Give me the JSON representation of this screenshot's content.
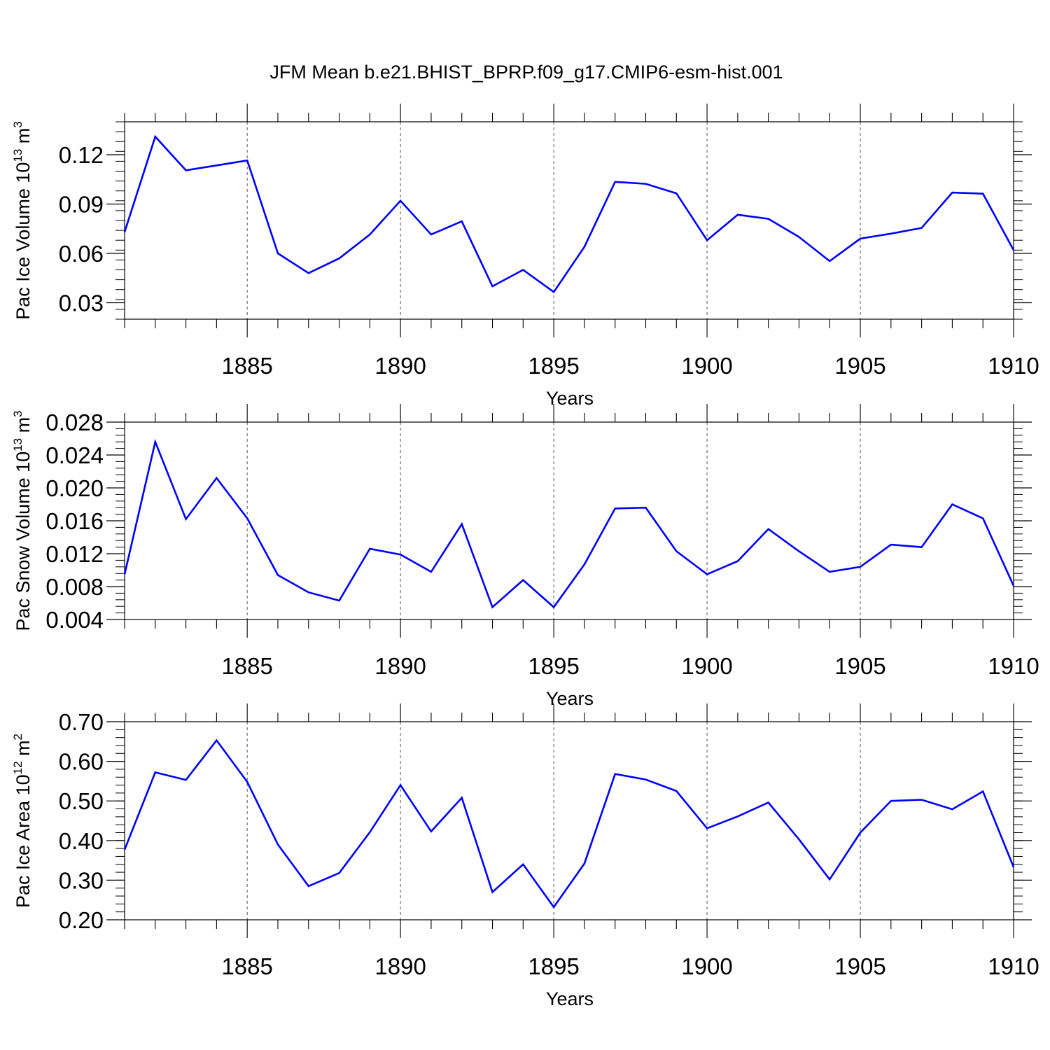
{
  "figure_title": "JFM Mean b.e21.BHIST_BPRP.f09_g17.CMIP6-esm-hist.001",
  "chart_data": [
    {
      "type": "line",
      "xlabel": "Years",
      "ylabel_parts": {
        "text": "Pac Ice Volume 10",
        "sup1": "13",
        "unit": " m",
        "sup2": "3"
      },
      "xlim": [
        1881,
        1910
      ],
      "ylim": [
        0.02,
        0.14
      ],
      "yticks": [
        0.03,
        0.06,
        0.09,
        0.12
      ],
      "ytick_labels": [
        "0.03",
        "0.06",
        "0.09",
        "0.12"
      ],
      "xticks": [
        1885,
        1890,
        1895,
        1900,
        1905,
        1910
      ],
      "xtick_labels": [
        "1885",
        "1890",
        "1895",
        "1900",
        "1905",
        "1910"
      ],
      "grid": "vertical dashed at major x ticks",
      "color": "#0000ff",
      "x": [
        1881,
        1882,
        1883,
        1884,
        1885,
        1886,
        1887,
        1888,
        1889,
        1890,
        1891,
        1892,
        1893,
        1894,
        1895,
        1896,
        1897,
        1898,
        1899,
        1900,
        1901,
        1902,
        1903,
        1904,
        1905,
        1906,
        1907,
        1908,
        1909,
        1910
      ],
      "values": [
        0.073,
        0.131,
        0.1105,
        0.1135,
        0.1165,
        0.06,
        0.048,
        0.057,
        0.0715,
        0.092,
        0.0715,
        0.0795,
        0.04,
        0.05,
        0.0365,
        0.064,
        0.1035,
        0.1023,
        0.0965,
        0.068,
        0.0835,
        0.081,
        0.07,
        0.0553,
        0.069,
        0.072,
        0.0755,
        0.097,
        0.0963,
        0.062
      ]
    },
    {
      "type": "line",
      "xlabel": "Years",
      "ylabel_parts": {
        "text": "Pac Snow Volume 10",
        "sup1": "13",
        "unit": " m",
        "sup2": "3"
      },
      "xlim": [
        1881,
        1910
      ],
      "ylim": [
        0.004,
        0.028
      ],
      "yticks": [
        0.004,
        0.008,
        0.012,
        0.016,
        0.02,
        0.024,
        0.028
      ],
      "ytick_labels": [
        "0.004",
        "0.008",
        "0.012",
        "0.016",
        "0.020",
        "0.024",
        "0.028"
      ],
      "xticks": [
        1885,
        1890,
        1895,
        1900,
        1905,
        1910
      ],
      "xtick_labels": [
        "1885",
        "1890",
        "1895",
        "1900",
        "1905",
        "1910"
      ],
      "grid": "vertical dashed at major x ticks",
      "color": "#0000ff",
      "x": [
        1881,
        1882,
        1883,
        1884,
        1885,
        1886,
        1887,
        1888,
        1889,
        1890,
        1891,
        1892,
        1893,
        1894,
        1895,
        1896,
        1897,
        1898,
        1899,
        1900,
        1901,
        1902,
        1903,
        1904,
        1905,
        1906,
        1907,
        1908,
        1909,
        1910
      ],
      "values": [
        0.0095,
        0.0256,
        0.0162,
        0.0212,
        0.0163,
        0.0094,
        0.0073,
        0.0063,
        0.0126,
        0.0119,
        0.0098,
        0.0156,
        0.0055,
        0.0088,
        0.0055,
        0.0107,
        0.0175,
        0.0176,
        0.0123,
        0.0095,
        0.0111,
        0.015,
        0.0123,
        0.0098,
        0.0104,
        0.0131,
        0.0128,
        0.018,
        0.0163,
        0.0081
      ]
    },
    {
      "type": "line",
      "xlabel": "Years",
      "ylabel_parts": {
        "text": "Pac Ice Area 10",
        "sup1": "12",
        "unit": " m",
        "sup2": "2"
      },
      "xlim": [
        1881,
        1910
      ],
      "ylim": [
        0.2,
        0.7
      ],
      "yticks": [
        0.2,
        0.3,
        0.4,
        0.5,
        0.6,
        0.7
      ],
      "ytick_labels": [
        "0.20",
        "0.30",
        "0.40",
        "0.50",
        "0.60",
        "0.70"
      ],
      "xticks": [
        1885,
        1890,
        1895,
        1900,
        1905,
        1910
      ],
      "xtick_labels": [
        "1885",
        "1890",
        "1895",
        "1900",
        "1905",
        "1910"
      ],
      "grid": "vertical dashed at major x ticks",
      "color": "#0000ff",
      "x": [
        1881,
        1882,
        1883,
        1884,
        1885,
        1886,
        1887,
        1888,
        1889,
        1890,
        1891,
        1892,
        1893,
        1894,
        1895,
        1896,
        1897,
        1898,
        1899,
        1900,
        1901,
        1902,
        1903,
        1904,
        1905,
        1906,
        1907,
        1908,
        1909,
        1910
      ],
      "values": [
        0.377,
        0.572,
        0.553,
        0.653,
        0.548,
        0.39,
        0.285,
        0.318,
        0.421,
        0.54,
        0.423,
        0.508,
        0.27,
        0.34,
        0.232,
        0.342,
        0.568,
        0.554,
        0.525,
        0.431,
        0.461,
        0.496,
        0.403,
        0.302,
        0.42,
        0.5,
        0.503,
        0.479,
        0.524,
        0.333
      ]
    }
  ]
}
